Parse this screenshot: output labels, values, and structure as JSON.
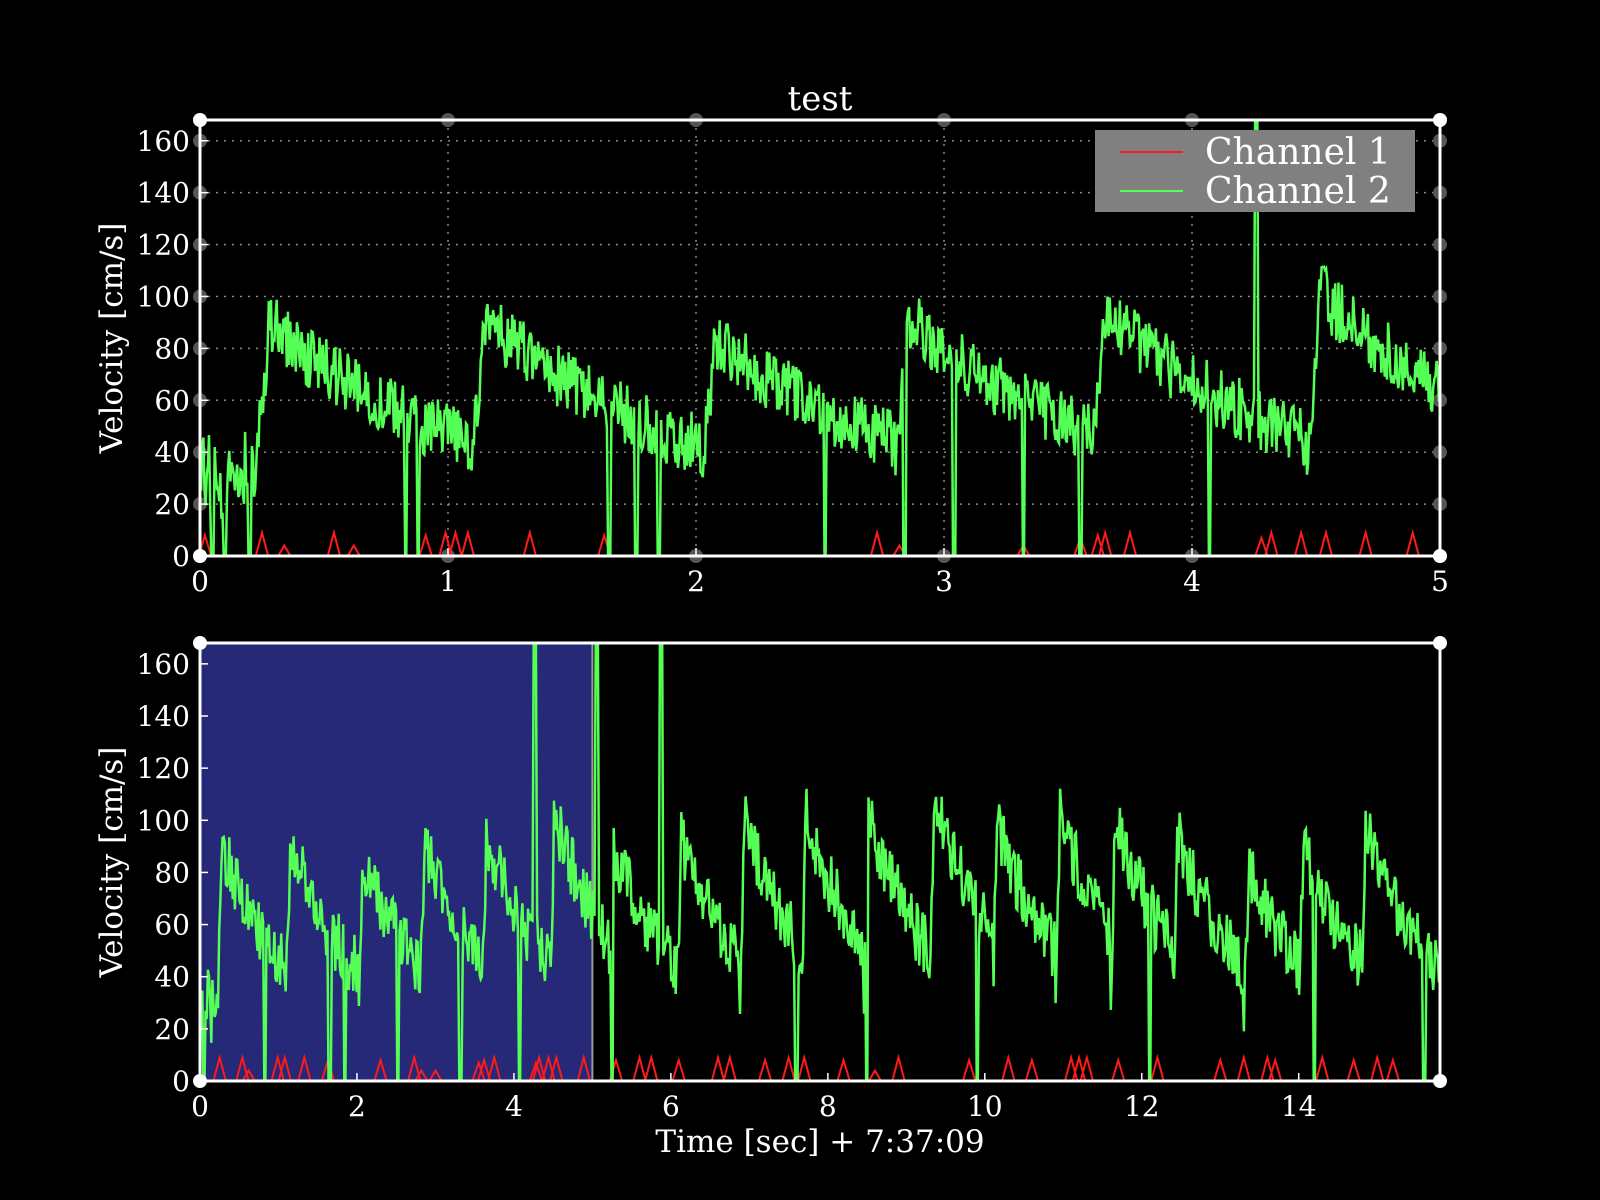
{
  "colors": {
    "background": "#000000",
    "axes": "#ffffff",
    "grid": "#8a8a8a",
    "channel1": "#ff1a1a",
    "channel2": "#55ff55",
    "selection": "#262878",
    "legend_bg": "#808080"
  },
  "chart_data": [
    {
      "type": "line",
      "title": "test",
      "xlabel": "",
      "ylabel": "Velocity [cm/s]",
      "xlim": [
        0,
        5
      ],
      "ylim": [
        0,
        168
      ],
      "xticks": [
        "0",
        "1",
        "2",
        "3",
        "4",
        "5"
      ],
      "yticks": [
        "0",
        "20",
        "40",
        "60",
        "80",
        "100",
        "120",
        "140",
        "160"
      ],
      "grid": true,
      "legend": {
        "position": "top-right",
        "entries": [
          "Channel 1",
          "Channel 2"
        ]
      },
      "series": [
        {
          "name": "Channel 1",
          "color": "#ff1a1a",
          "style": "spikes",
          "x": [
            0.02,
            0.25,
            0.34,
            0.54,
            0.62,
            0.91,
            0.99,
            1.03,
            1.08,
            1.33,
            1.63,
            2.73,
            2.82,
            3.32,
            3.55,
            3.62,
            3.65,
            3.75,
            4.28,
            4.32,
            4.44,
            4.54,
            4.7,
            4.89
          ],
          "y": [
            8,
            9,
            4,
            9,
            4,
            8,
            9,
            9,
            9,
            9,
            8,
            9,
            4,
            4,
            7,
            8,
            9,
            9,
            7,
            9,
            9,
            9,
            9,
            9
          ]
        },
        {
          "name": "Channel 2",
          "color": "#55ff55",
          "style": "noisy-pulse",
          "beats": [
            0.22,
            1.09,
            2.02,
            2.8,
            3.59,
            4.46
          ],
          "peaks": [
            78,
            80,
            72,
            80,
            82,
            90
          ],
          "baseline": 30,
          "spike": {
            "x": 4.26,
            "y": 170
          },
          "dropouts": [
            0.05,
            0.1,
            0.2,
            0.83,
            0.88,
            1.65,
            1.76,
            1.85,
            2.52,
            2.84,
            3.04,
            3.32,
            3.55,
            4.07
          ]
        }
      ]
    },
    {
      "type": "line",
      "title": "",
      "xlabel": "Time [sec] + 7:37:09",
      "ylabel": "Velocity [cm/s]",
      "xlim": [
        0,
        15.8
      ],
      "ylim": [
        0,
        168
      ],
      "xticks": [
        "0",
        "2",
        "4",
        "6",
        "8",
        "10",
        "12",
        "14"
      ],
      "yticks": [
        "0",
        "20",
        "40",
        "60",
        "80",
        "100",
        "120",
        "140",
        "160"
      ],
      "grid": false,
      "selection_span": [
        0,
        5
      ],
      "series": [
        {
          "name": "Channel 1",
          "color": "#ff1a1a",
          "style": "spikes",
          "x": [
            0.25,
            0.54,
            0.62,
            0.99,
            1.08,
            1.33,
            1.63,
            2.3,
            2.73,
            2.82,
            3.0,
            3.55,
            3.62,
            3.75,
            4.28,
            4.32,
            4.44,
            4.54,
            4.89,
            5.3,
            5.6,
            5.75,
            6.1,
            6.6,
            6.75,
            7.2,
            7.5,
            7.7,
            8.2,
            8.6,
            8.9,
            9.8,
            10.3,
            10.6,
            11.1,
            11.2,
            11.3,
            11.7,
            12.2,
            13.0,
            13.3,
            13.6,
            13.7,
            14.3,
            14.7,
            15.0,
            15.2
          ],
          "y": [
            9,
            9,
            4,
            9,
            9,
            9,
            8,
            8,
            9,
            4,
            4,
            7,
            8,
            9,
            7,
            9,
            9,
            9,
            9,
            8,
            9,
            9,
            8,
            9,
            9,
            8,
            9,
            9,
            8,
            4,
            9,
            8,
            9,
            8,
            9,
            9,
            9,
            8,
            9,
            8,
            9,
            9,
            8,
            9,
            8,
            9,
            8
          ]
        },
        {
          "name": "Channel 2",
          "color": "#55ff55",
          "style": "noisy-pulse",
          "beats": [
            0.22,
            1.09,
            2.02,
            2.8,
            3.59,
            4.46,
            5.2,
            6.08,
            6.88,
            7.66,
            8.46,
            9.3,
            10.1,
            10.9,
            11.6,
            12.4,
            13.3,
            14.0,
            14.8
          ],
          "peaks": [
            78,
            80,
            72,
            80,
            82,
            90,
            78,
            80,
            88,
            90,
            90,
            98,
            86,
            90,
            88,
            82,
            70,
            78,
            84
          ],
          "baseline": 30,
          "spikes": [
            {
              "x": 4.26,
              "y": 170
            },
            {
              "x": 5.05,
              "y": 170
            },
            {
              "x": 5.87,
              "y": 170
            }
          ],
          "dropouts": [
            0.05,
            0.83,
            1.65,
            1.85,
            2.52,
            3.32,
            4.07,
            5.25,
            7.6,
            8.5,
            9.9,
            12.1,
            14.2,
            15.6
          ]
        }
      ]
    }
  ]
}
